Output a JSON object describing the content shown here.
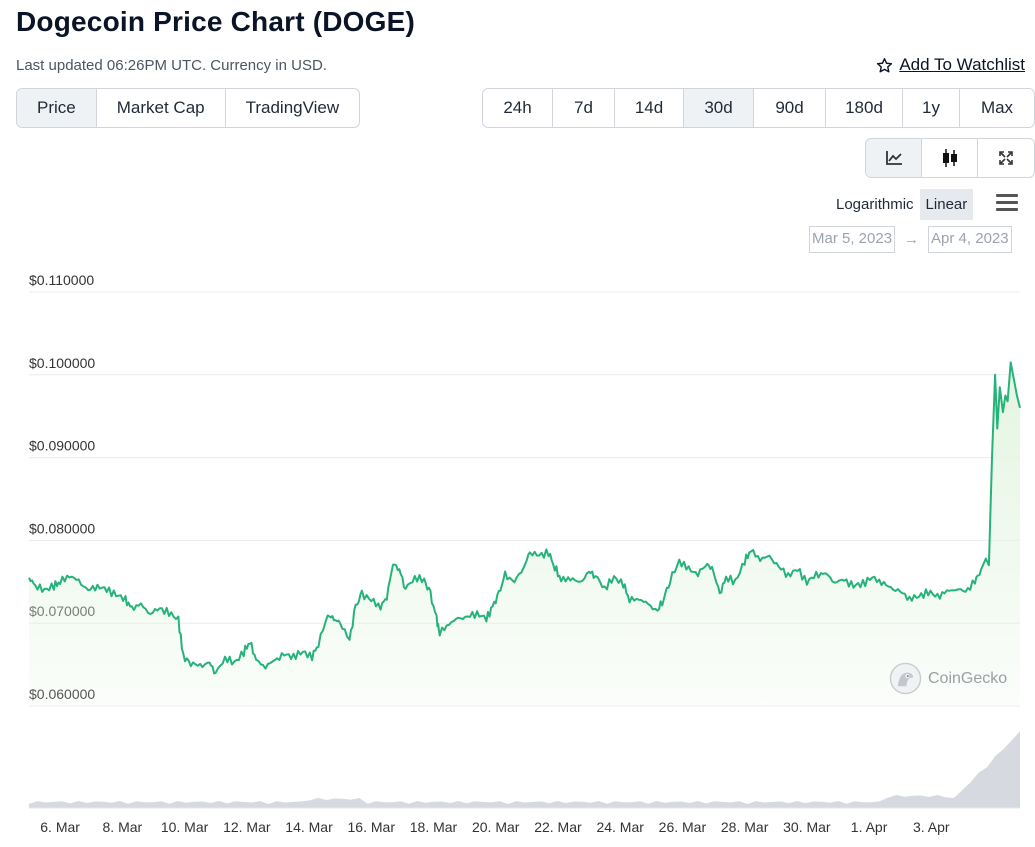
{
  "header": {
    "title": "Dogecoin Price Chart (DOGE)",
    "updated": "Last updated 06:26PM UTC. Currency in USD.",
    "watchlist_label": "Add To Watchlist",
    "watchlist_icon": "star-icon"
  },
  "tabs": [
    {
      "label": "Price",
      "active": true
    },
    {
      "label": "Market Cap",
      "active": false
    },
    {
      "label": "TradingView",
      "active": false
    }
  ],
  "ranges": [
    {
      "label": "24h",
      "active": false
    },
    {
      "label": "7d",
      "active": false
    },
    {
      "label": "14d",
      "active": false
    },
    {
      "label": "30d",
      "active": true
    },
    {
      "label": "90d",
      "active": false
    },
    {
      "label": "180d",
      "active": false
    },
    {
      "label": "1y",
      "active": false
    },
    {
      "label": "Max",
      "active": false
    }
  ],
  "chart_types": [
    {
      "icon": "line-chart-icon",
      "active": true
    },
    {
      "icon": "candlestick-icon",
      "active": false
    },
    {
      "icon": "fullscreen-icon",
      "active": false
    }
  ],
  "scale": {
    "logarithmic": "Logarithmic",
    "linear": "Linear",
    "active": "Linear"
  },
  "date_range": {
    "from": "Mar 5, 2023",
    "to": "Apr 4, 2023",
    "arrow": "→"
  },
  "watermark": "CoinGecko",
  "colors": {
    "line": "#26b37b",
    "fill": "#e4f5e1",
    "volume": "#d6d9e0"
  },
  "chart_data": {
    "type": "area",
    "y_ticks": [
      "$0.110000",
      "$0.100000",
      "$0.090000",
      "$0.080000",
      "$0.070000",
      "$0.060000"
    ],
    "ylim": [
      0.06,
      0.11
    ],
    "x_ticks": [
      "6. Mar",
      "8. Mar",
      "10. Mar",
      "12. Mar",
      "14. Mar",
      "16. Mar",
      "18. Mar",
      "20. Mar",
      "22. Mar",
      "24. Mar",
      "26. Mar",
      "28. Mar",
      "30. Mar",
      "1. Apr",
      "3. Apr"
    ],
    "xlim_days": [
      0,
      31
    ],
    "x_ticks_days": [
      1,
      3,
      5,
      7,
      9,
      11,
      13,
      15,
      17,
      19,
      21,
      23,
      25,
      27,
      29
    ],
    "grid": true,
    "series": [
      {
        "values_comment": "[day offset from 5 Mar 2023, price USD]",
        "points": [
          [
            0.0,
            0.0755
          ],
          [
            0.2,
            0.0745
          ],
          [
            0.5,
            0.074
          ],
          [
            0.8,
            0.0745
          ],
          [
            1.0,
            0.075
          ],
          [
            1.3,
            0.0758
          ],
          [
            1.6,
            0.075
          ],
          [
            1.9,
            0.074
          ],
          [
            2.2,
            0.0745
          ],
          [
            2.5,
            0.074
          ],
          [
            2.8,
            0.0735
          ],
          [
            3.1,
            0.0728
          ],
          [
            3.3,
            0.0718
          ],
          [
            3.6,
            0.0722
          ],
          [
            3.9,
            0.0712
          ],
          [
            4.2,
            0.0718
          ],
          [
            4.5,
            0.0712
          ],
          [
            4.8,
            0.0705
          ],
          [
            4.95,
            0.066
          ],
          [
            5.2,
            0.0652
          ],
          [
            5.5,
            0.0648
          ],
          [
            5.8,
            0.0652
          ],
          [
            6.0,
            0.064
          ],
          [
            6.3,
            0.0658
          ],
          [
            6.6,
            0.0652
          ],
          [
            6.9,
            0.0665
          ],
          [
            7.1,
            0.0678
          ],
          [
            7.3,
            0.0655
          ],
          [
            7.6,
            0.0648
          ],
          [
            7.9,
            0.0655
          ],
          [
            8.2,
            0.0662
          ],
          [
            8.5,
            0.066
          ],
          [
            8.8,
            0.0665
          ],
          [
            9.1,
            0.066
          ],
          [
            9.3,
            0.0675
          ],
          [
            9.6,
            0.071
          ],
          [
            9.8,
            0.0705
          ],
          [
            10.0,
            0.07
          ],
          [
            10.3,
            0.068
          ],
          [
            10.5,
            0.072
          ],
          [
            10.7,
            0.0735
          ],
          [
            11.0,
            0.0728
          ],
          [
            11.3,
            0.072
          ],
          [
            11.5,
            0.0732
          ],
          [
            11.7,
            0.0772
          ],
          [
            11.9,
            0.0765
          ],
          [
            12.1,
            0.0742
          ],
          [
            12.4,
            0.0755
          ],
          [
            12.7,
            0.0752
          ],
          [
            12.9,
            0.0735
          ],
          [
            13.1,
            0.0705
          ],
          [
            13.2,
            0.0688
          ],
          [
            13.5,
            0.07
          ],
          [
            13.8,
            0.0705
          ],
          [
            14.1,
            0.0708
          ],
          [
            14.4,
            0.0712
          ],
          [
            14.7,
            0.0705
          ],
          [
            14.9,
            0.072
          ],
          [
            15.1,
            0.0735
          ],
          [
            15.3,
            0.0758
          ],
          [
            15.6,
            0.075
          ],
          [
            15.9,
            0.0768
          ],
          [
            16.1,
            0.0785
          ],
          [
            16.4,
            0.0782
          ],
          [
            16.7,
            0.0785
          ],
          [
            16.9,
            0.0768
          ],
          [
            17.1,
            0.0752
          ],
          [
            17.4,
            0.0755
          ],
          [
            17.7,
            0.0748
          ],
          [
            18.0,
            0.0762
          ],
          [
            18.2,
            0.0758
          ],
          [
            18.5,
            0.0742
          ],
          [
            18.8,
            0.0755
          ],
          [
            19.1,
            0.0748
          ],
          [
            19.3,
            0.0728
          ],
          [
            19.6,
            0.073
          ],
          [
            19.9,
            0.0722
          ],
          [
            20.2,
            0.0715
          ],
          [
            20.4,
            0.073
          ],
          [
            20.6,
            0.0752
          ],
          [
            20.9,
            0.0775
          ],
          [
            21.2,
            0.0765
          ],
          [
            21.5,
            0.076
          ],
          [
            21.8,
            0.0772
          ],
          [
            22.0,
            0.0762
          ],
          [
            22.2,
            0.0735
          ],
          [
            22.4,
            0.0755
          ],
          [
            22.7,
            0.075
          ],
          [
            23.0,
            0.0775
          ],
          [
            23.2,
            0.0788
          ],
          [
            23.5,
            0.0778
          ],
          [
            23.8,
            0.078
          ],
          [
            24.1,
            0.0768
          ],
          [
            24.4,
            0.0758
          ],
          [
            24.7,
            0.0765
          ],
          [
            25.0,
            0.075
          ],
          [
            25.3,
            0.0758
          ],
          [
            25.6,
            0.076
          ],
          [
            25.9,
            0.075
          ],
          [
            26.2,
            0.0752
          ],
          [
            26.5,
            0.0745
          ],
          [
            26.8,
            0.0748
          ],
          [
            27.1,
            0.0755
          ],
          [
            27.4,
            0.075
          ],
          [
            27.7,
            0.0742
          ],
          [
            28.0,
            0.0738
          ],
          [
            28.3,
            0.073
          ],
          [
            28.6,
            0.0732
          ],
          [
            28.9,
            0.0738
          ],
          [
            29.2,
            0.0732
          ],
          [
            29.5,
            0.0738
          ],
          [
            29.8,
            0.0742
          ],
          [
            30.1,
            0.0738
          ],
          [
            30.4,
            0.075
          ],
          [
            30.6,
            0.0765
          ]
        ]
      }
    ]
  }
}
